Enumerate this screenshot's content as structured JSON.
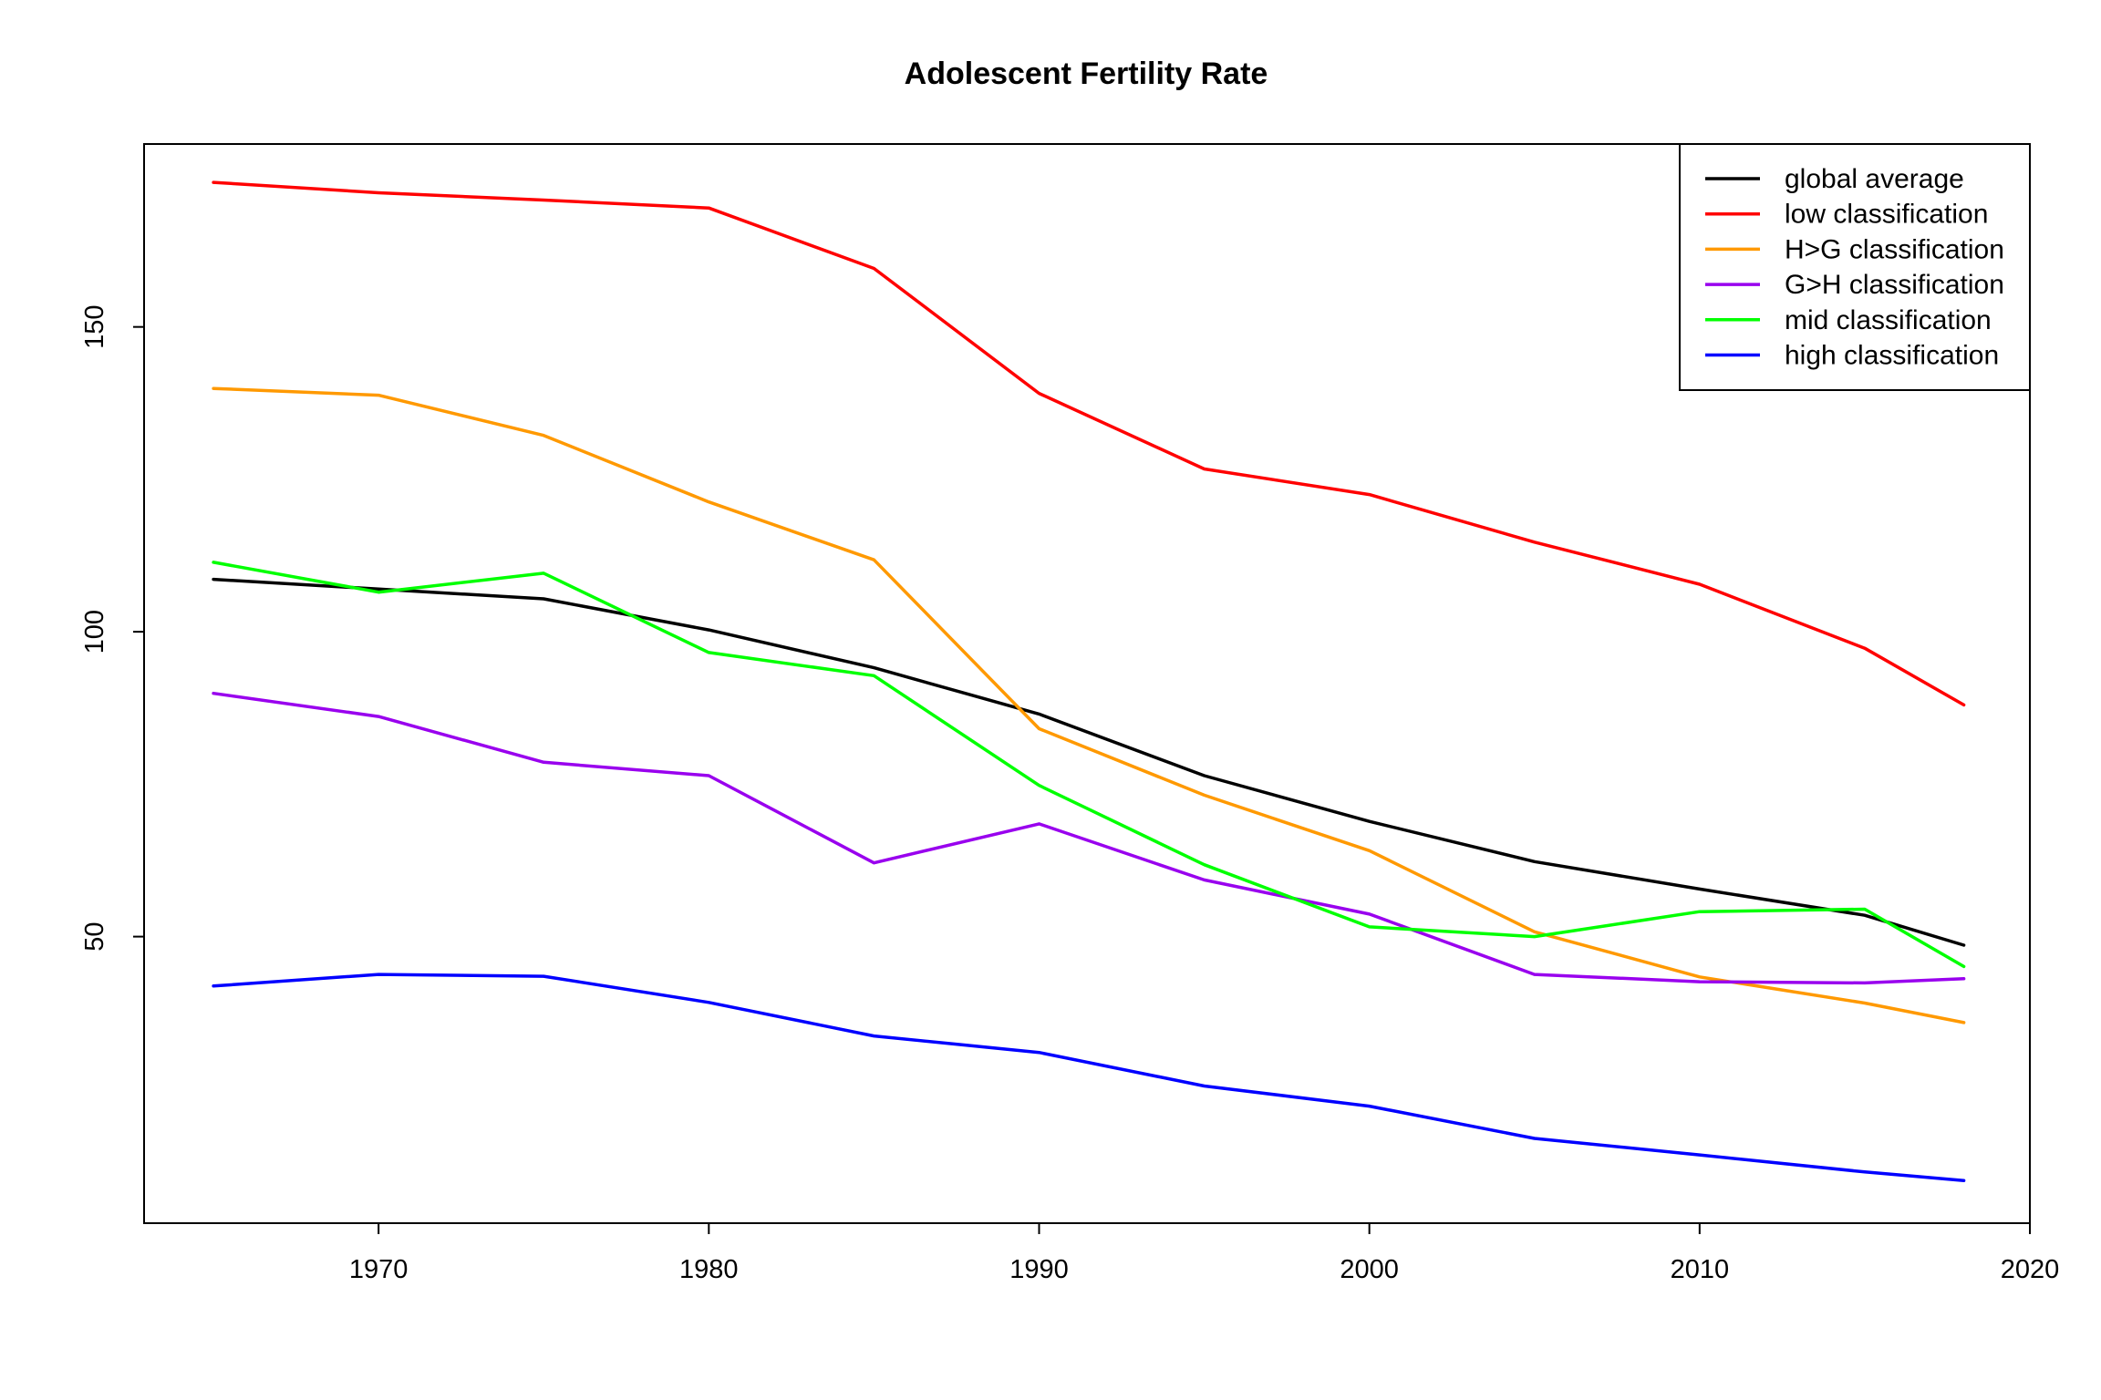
{
  "chart_data": {
    "type": "line",
    "title": "Adolescent Fertility Rate",
    "xlabel": "",
    "ylabel": "",
    "xlim": [
      1962.9,
      2020
    ],
    "ylim": [
      3,
      180
    ],
    "x_ticks": [
      1970,
      1980,
      1990,
      2000,
      2010,
      2020
    ],
    "y_ticks": [
      50,
      100,
      150
    ],
    "grid": false,
    "legend_position": "top-right",
    "x": [
      1965,
      1970,
      1975,
      1980,
      1985,
      1990,
      1995,
      2000,
      2005,
      2010,
      2015,
      2018
    ],
    "series": [
      {
        "name": "global average",
        "color": "#000000",
        "values": [
          108.6,
          107.0,
          105.4,
          100.3,
          94.1,
          86.5,
          76.4,
          68.9,
          62.3,
          57.8,
          53.5,
          48.6
        ]
      },
      {
        "name": "low classification",
        "color": "#ff0000",
        "values": [
          173.7,
          172.0,
          170.8,
          169.5,
          159.6,
          139.1,
          126.7,
          122.5,
          114.7,
          107.8,
          97.3,
          88.0
        ]
      },
      {
        "name": "H>G classification",
        "color": "#ff9900",
        "values": [
          139.9,
          138.8,
          132.2,
          121.3,
          111.8,
          84.1,
          73.2,
          64.1,
          50.8,
          43.4,
          39.1,
          35.9
        ]
      },
      {
        "name": "G>H classification",
        "color": "#9900ee",
        "values": [
          89.9,
          86.1,
          78.6,
          76.4,
          62.1,
          68.5,
          59.3,
          53.7,
          43.8,
          42.6,
          42.4,
          43.1
        ]
      },
      {
        "name": "mid classification",
        "color": "#00ff00",
        "values": [
          111.4,
          106.5,
          109.6,
          96.6,
          92.8,
          74.8,
          61.8,
          51.6,
          50.0,
          54.1,
          54.5,
          45.1
        ]
      },
      {
        "name": "high classification",
        "color": "#0000ff",
        "values": [
          41.9,
          43.8,
          43.5,
          39.2,
          33.7,
          31.0,
          25.5,
          22.2,
          16.9,
          14.2,
          11.4,
          10.0
        ]
      }
    ]
  }
}
